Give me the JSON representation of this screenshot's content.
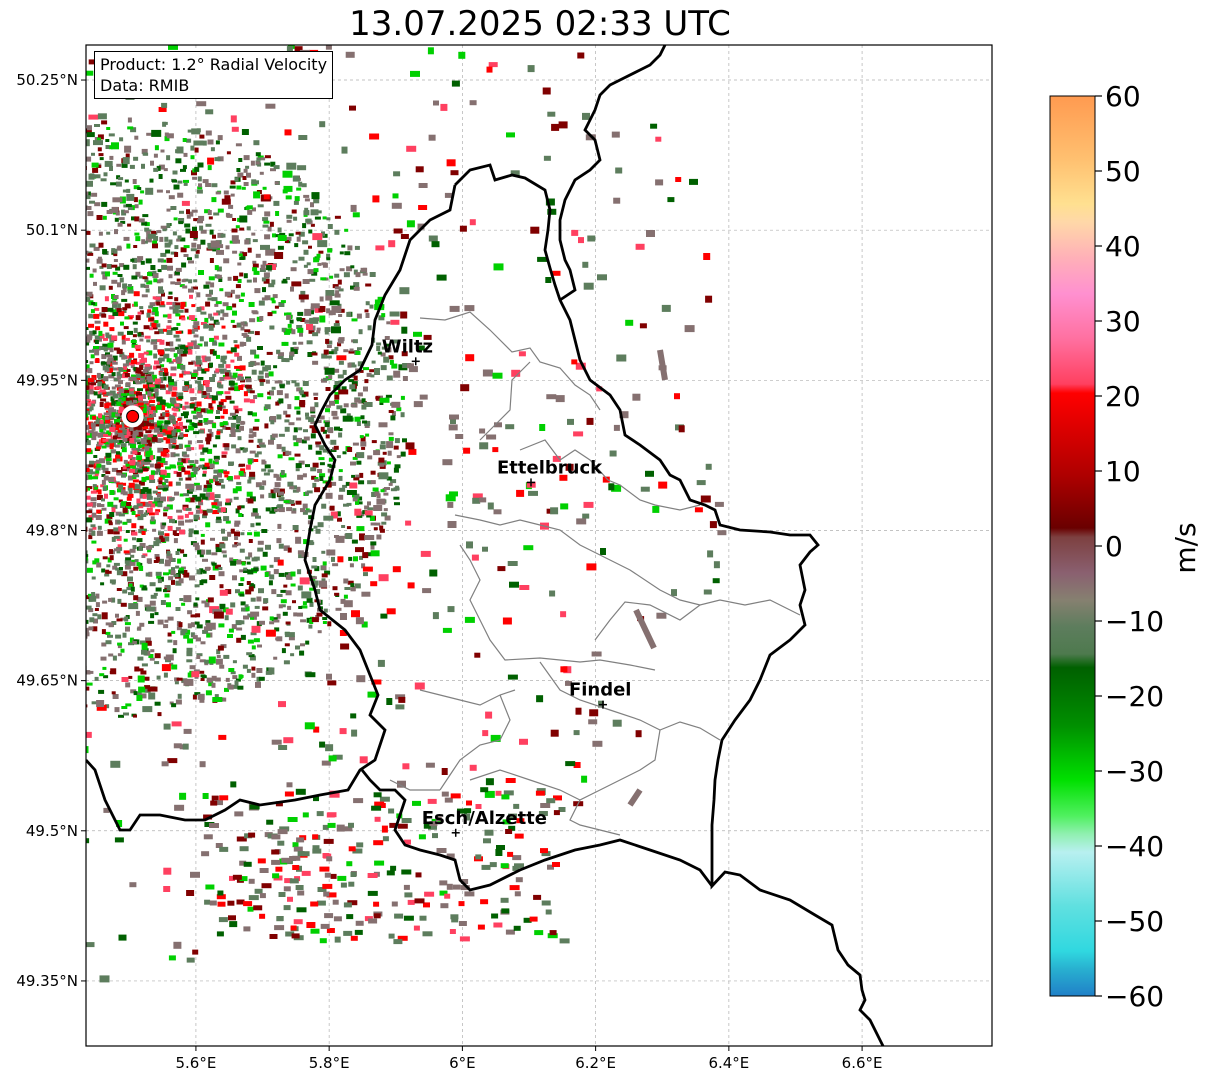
{
  "title": "13.07.2025 02:33 UTC",
  "info": {
    "product": "Product: 1.2° Radial Velocity",
    "source": "Data: RMIB"
  },
  "axes": {
    "lon_range": [
      5.435,
      6.795
    ],
    "lat_range": [
      49.285,
      50.285
    ],
    "x_ticks": [
      {
        "value": 5.6,
        "label": "5.6°E"
      },
      {
        "value": 5.8,
        "label": "5.8°E"
      },
      {
        "value": 6.0,
        "label": "6°E"
      },
      {
        "value": 6.2,
        "label": "6.2°E"
      },
      {
        "value": 6.4,
        "label": "6.4°E"
      },
      {
        "value": 6.6,
        "label": "6.6°E"
      }
    ],
    "y_ticks": [
      {
        "value": 49.35,
        "label": "49.35°N"
      },
      {
        "value": 49.5,
        "label": "49.5°N"
      },
      {
        "value": 49.65,
        "label": "49.65°N"
      },
      {
        "value": 49.8,
        "label": "49.8°N"
      },
      {
        "value": 49.95,
        "label": "49.95°N"
      },
      {
        "value": 50.1,
        "label": "50.1°N"
      },
      {
        "value": 50.25,
        "label": "50.25°N"
      }
    ]
  },
  "cities": [
    {
      "name": "Wiltz",
      "lon": 5.93,
      "lat": 49.969
    },
    {
      "name": "Ettelbruck",
      "lon": 6.103,
      "lat": 49.848
    },
    {
      "name": "Findel",
      "lon": 6.211,
      "lat": 49.626
    },
    {
      "name": "Esch/Alzette",
      "lon": 5.99,
      "lat": 49.498
    }
  ],
  "radar_site": {
    "lon": 5.505,
    "lat": 49.914,
    "color": "#ff0000"
  },
  "colorbar": {
    "unit": "m/s",
    "min": -60,
    "max": 60,
    "tick_values": [
      60,
      50,
      40,
      30,
      20,
      10,
      0,
      -10,
      -20,
      -30,
      -40,
      -50,
      -60
    ],
    "tick_labels": [
      "60",
      "50",
      "40",
      "30",
      "20",
      "10",
      "0",
      "−10",
      "−20",
      "−30",
      "−40",
      "−50",
      "−60"
    ]
  },
  "colors": {
    "border_country": "#000000",
    "border_canton": "#808080",
    "grid": "#b0b0b0",
    "vel_neg_strong": "#2a8fd0",
    "vel_neg_cyan": "#40e0e0",
    "vel_neg_lightcyan": "#b0f0f0",
    "vel_neg_green": "#00d000",
    "vel_neg_darkgreen": "#006000",
    "vel_zero_neg": "#5d7d5d",
    "vel_zero_pos": "#857070",
    "vel_pos_darkred": "#800000",
    "vel_pos_red": "#ff0000",
    "vel_pos_pink": "#ff4060",
    "vel_pos_orange": "#ff9a50"
  }
}
